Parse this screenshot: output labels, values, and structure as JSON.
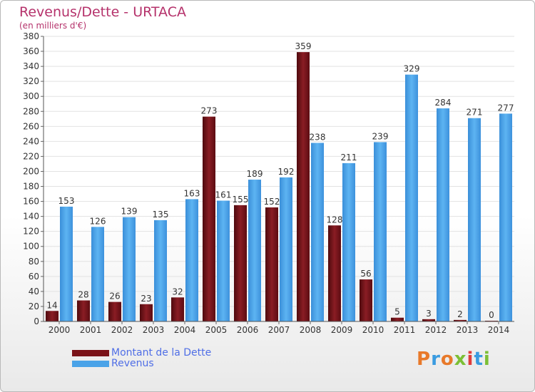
{
  "header": {
    "title": "Revenus/Dette - URTACA",
    "subtitle": "(en milliers d'€)"
  },
  "legend": {
    "items": [
      {
        "label": "Montant de la Dette",
        "color": "#7a1218"
      },
      {
        "label": "Revenus",
        "color": "#4aa3e8"
      }
    ]
  },
  "logo": {
    "text": "Proxiti",
    "colors": [
      "#e8792a",
      "#3a9be0",
      "#e8792a",
      "#7cbf35",
      "#e03c3c",
      "#3a9be0",
      "#7cbf35"
    ]
  },
  "chart_data": {
    "type": "bar",
    "categories": [
      "2000",
      "2001",
      "2002",
      "2003",
      "2004",
      "2005",
      "2006",
      "2007",
      "2008",
      "2009",
      "2010",
      "2011",
      "2012",
      "2013",
      "2014"
    ],
    "series": [
      {
        "name": "Montant de la Dette",
        "values": [
          14,
          28,
          26,
          23,
          32,
          273,
          155,
          152,
          359,
          128,
          56,
          5,
          3,
          2,
          0
        ],
        "color": "#7a1218"
      },
      {
        "name": "Revenus",
        "values": [
          153,
          126,
          139,
          135,
          163,
          161,
          189,
          192,
          238,
          211,
          239,
          329,
          284,
          271,
          277
        ],
        "color": "#4aa3e8"
      }
    ],
    "ylim": [
      0,
      380
    ],
    "ytick_step": 20,
    "grid": true
  }
}
